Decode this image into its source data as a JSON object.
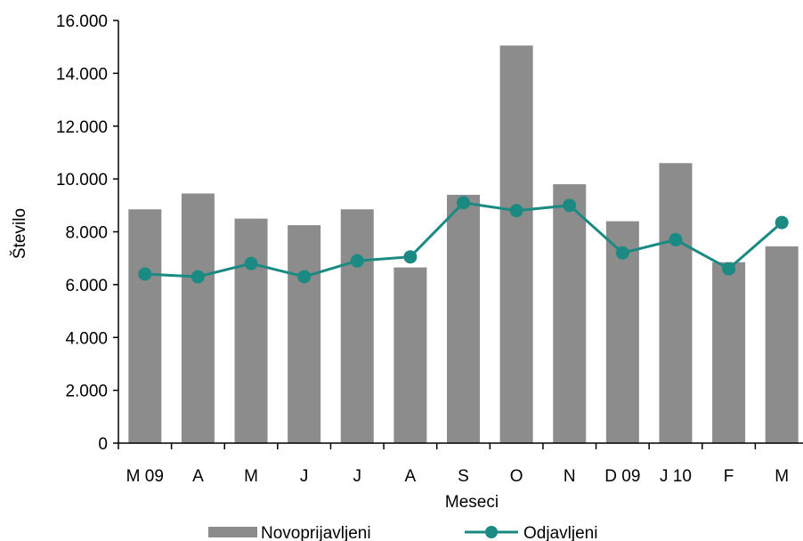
{
  "chart_data": {
    "type": "bar",
    "categories": [
      "M 09",
      "A",
      "M",
      "J",
      "J",
      "A",
      "S",
      "O",
      "N",
      "D 09",
      "J 10",
      "F",
      "M"
    ],
    "series": [
      {
        "name": "Novoprijavljeni",
        "type": "bar",
        "color": "#8c8c8c",
        "values": [
          8850,
          9450,
          8500,
          8250,
          8850,
          6650,
          9400,
          15050,
          9800,
          8400,
          10600,
          6850,
          7450
        ]
      },
      {
        "name": "Odjavljeni",
        "type": "line",
        "color": "#1a8a82",
        "values": [
          6400,
          6300,
          6800,
          6300,
          6900,
          7050,
          9100,
          8800,
          9000,
          7200,
          7700,
          6600,
          8350
        ]
      }
    ],
    "y_ticks": [
      "0",
      "2.000",
      "4.000",
      "6.000",
      "8.000",
      "10.000",
      "12.000",
      "14.000",
      "16.000"
    ],
    "ylim": [
      0,
      16000
    ],
    "xlabel": "Meseci",
    "ylabel": "Število",
    "grid": false,
    "legend_position": "bottom"
  }
}
